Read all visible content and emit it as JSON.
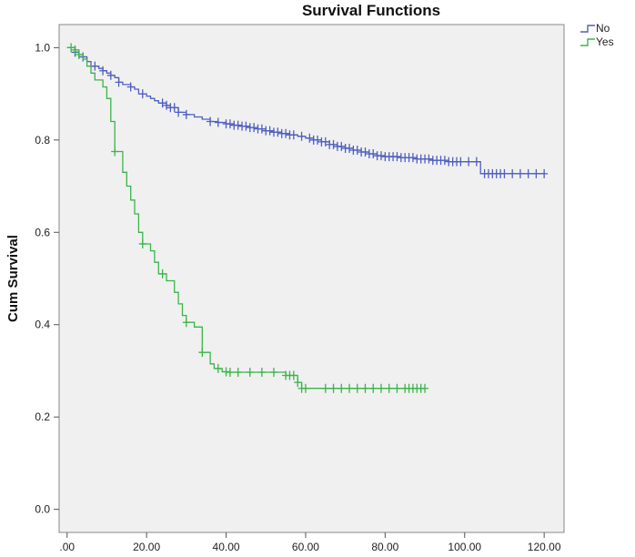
{
  "chart_data": {
    "type": "line",
    "title": "Survival Functions",
    "xlabel": "",
    "ylabel": "Cum Survival",
    "xlim": [
      -2,
      125
    ],
    "ylim": [
      -0.05,
      1.05
    ],
    "x_ticks": [
      0,
      20,
      40,
      60,
      80,
      100,
      120
    ],
    "x_tick_labels": [
      ".00",
      "20.00",
      "40.00",
      "60.00",
      "80.00",
      "100.00",
      "120.00"
    ],
    "y_ticks": [
      0,
      0.2,
      0.4,
      0.6,
      0.8,
      1.0
    ],
    "y_tick_labels": [
      "0.0",
      "0.2",
      "0.4",
      "0.6",
      "0.8",
      "1.0"
    ],
    "grid": false,
    "plot_background": "#f0f0f0",
    "legend_position": "top-right",
    "series": [
      {
        "name": "No",
        "color": "#4f5fbf",
        "step_points": [
          [
            0,
            1.0
          ],
          [
            2,
            0.99
          ],
          [
            3,
            0.98
          ],
          [
            5,
            0.97
          ],
          [
            6,
            0.96
          ],
          [
            8,
            0.955
          ],
          [
            9,
            0.95
          ],
          [
            10,
            0.945
          ],
          [
            11,
            0.94
          ],
          [
            12,
            0.935
          ],
          [
            13,
            0.925
          ],
          [
            14,
            0.92
          ],
          [
            16,
            0.915
          ],
          [
            17,
            0.91
          ],
          [
            18,
            0.9
          ],
          [
            20,
            0.895
          ],
          [
            21,
            0.89
          ],
          [
            22,
            0.885
          ],
          [
            23,
            0.88
          ],
          [
            25,
            0.875
          ],
          [
            26,
            0.87
          ],
          [
            28,
            0.86
          ],
          [
            30,
            0.855
          ],
          [
            32,
            0.85
          ],
          [
            34,
            0.845
          ],
          [
            36,
            0.84
          ],
          [
            38,
            0.838
          ],
          [
            40,
            0.835
          ],
          [
            42,
            0.832
          ],
          [
            44,
            0.83
          ],
          [
            46,
            0.827
          ],
          [
            48,
            0.824
          ],
          [
            50,
            0.82
          ],
          [
            52,
            0.817
          ],
          [
            54,
            0.814
          ],
          [
            56,
            0.811
          ],
          [
            58,
            0.808
          ],
          [
            60,
            0.804
          ],
          [
            62,
            0.8
          ],
          [
            64,
            0.796
          ],
          [
            66,
            0.79
          ],
          [
            68,
            0.786
          ],
          [
            70,
            0.782
          ],
          [
            72,
            0.778
          ],
          [
            74,
            0.774
          ],
          [
            76,
            0.77
          ],
          [
            78,
            0.766
          ],
          [
            80,
            0.764
          ],
          [
            84,
            0.762
          ],
          [
            88,
            0.759
          ],
          [
            92,
            0.756
          ],
          [
            96,
            0.753
          ],
          [
            104,
            0.727
          ],
          [
            120,
            0.727
          ]
        ],
        "censored_x": [
          2,
          4,
          7,
          9,
          11,
          13,
          16,
          19,
          24,
          25,
          26,
          27,
          28,
          30,
          36,
          38,
          40,
          41,
          42,
          43,
          44,
          45,
          46,
          47,
          48,
          49,
          50,
          51,
          52,
          53,
          54,
          55,
          56,
          57,
          59,
          61,
          62,
          63,
          64,
          65,
          66,
          67,
          68,
          69,
          70,
          71,
          72,
          73,
          74,
          75,
          76,
          77,
          78,
          79,
          80,
          81,
          82,
          83,
          84,
          85,
          86,
          87,
          88,
          89,
          90,
          91,
          92,
          93,
          94,
          95,
          96,
          97,
          98,
          99,
          101,
          103,
          105,
          106,
          107,
          108,
          109,
          110,
          112,
          114,
          116,
          118,
          120
        ]
      },
      {
        "name": "Yes",
        "color": "#3ab54a",
        "step_points": [
          [
            0,
            1.0
          ],
          [
            2,
            0.995
          ],
          [
            3,
            0.985
          ],
          [
            4,
            0.975
          ],
          [
            5,
            0.96
          ],
          [
            6,
            0.945
          ],
          [
            7,
            0.93
          ],
          [
            9,
            0.915
          ],
          [
            10,
            0.89
          ],
          [
            11,
            0.84
          ],
          [
            12,
            0.775
          ],
          [
            14,
            0.73
          ],
          [
            15,
            0.7
          ],
          [
            16,
            0.67
          ],
          [
            17,
            0.64
          ],
          [
            18,
            0.6
          ],
          [
            19,
            0.575
          ],
          [
            21,
            0.56
          ],
          [
            22,
            0.535
          ],
          [
            23,
            0.51
          ],
          [
            25,
            0.495
          ],
          [
            27,
            0.47
          ],
          [
            28,
            0.445
          ],
          [
            29,
            0.42
          ],
          [
            30,
            0.405
          ],
          [
            32,
            0.395
          ],
          [
            34,
            0.34
          ],
          [
            36,
            0.315
          ],
          [
            37,
            0.305
          ],
          [
            39,
            0.298
          ],
          [
            41,
            0.297
          ],
          [
            55,
            0.29
          ],
          [
            58,
            0.275
          ],
          [
            59,
            0.262
          ],
          [
            90,
            0.262
          ]
        ],
        "censored_x": [
          1,
          2,
          3,
          12,
          19,
          24,
          30,
          34,
          38,
          40,
          41,
          43,
          46,
          49,
          52,
          55,
          56,
          57,
          58,
          59,
          60,
          65,
          67,
          69,
          71,
          73,
          75,
          77,
          79,
          81,
          83,
          85,
          86,
          87,
          88,
          89,
          90
        ]
      }
    ]
  }
}
